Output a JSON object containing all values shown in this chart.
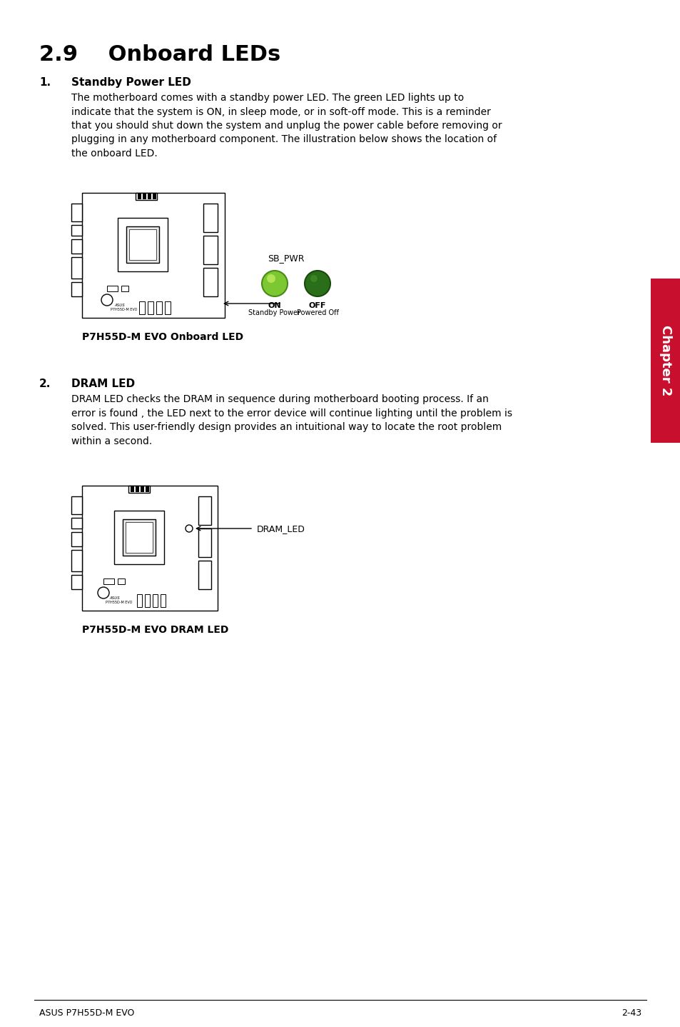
{
  "bg_color": "#ffffff",
  "title": "2.9    Onboard LEDs",
  "section1_num": "1.",
  "section1_title": "Standby Power LED",
  "section1_body": "The motherboard comes with a standby power LED. The green LED lights up to\nindicate that the system is ON, in sleep mode, or in soft-off mode. This is a reminder\nthat you should shut down the system and unplug the power cable before removing or\nplugging in any motherboard component. The illustration below shows the location of\nthe onboard LED.",
  "img1_caption": "P7H55D-M EVO Onboard LED",
  "sb_pwr_label": "SB_PWR",
  "on_label": "ON",
  "on_sublabel": "Standby Power",
  "off_label": "OFF",
  "off_sublabel": "Powered Off",
  "section2_num": "2.",
  "section2_title": "DRAM LED",
  "section2_body": "DRAM LED checks the DRAM in sequence during motherboard booting process. If an\nerror is found , the LED next to the error device will continue lighting until the problem is\nsolved. This user-friendly design provides an intuitional way to locate the root problem\nwithin a second.",
  "dram_led_label": "DRAM_LED",
  "img2_caption": "P7H55D-M EVO DRAM LED",
  "footer_left": "ASUS P7H55D-M EVO",
  "footer_right": "2-43",
  "chapter_label": "Chapter 2",
  "tab_color": "#c8102e"
}
